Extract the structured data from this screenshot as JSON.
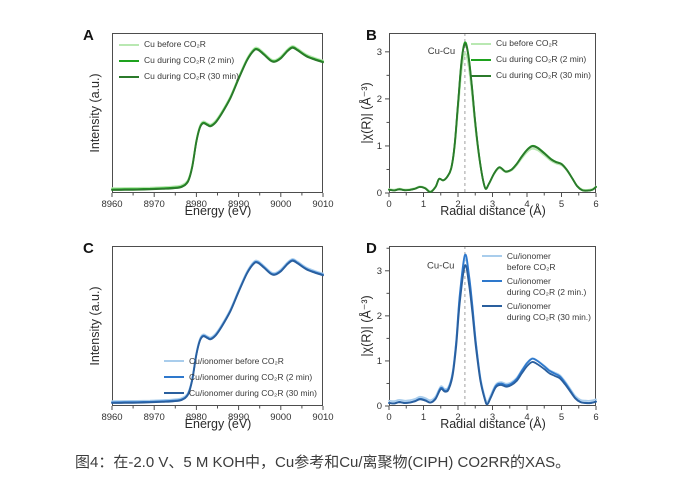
{
  "caption": "图4：在-2.0 V、5 M KOH中，Cu参考和Cu/离聚物(CIPH) CO2RR的XAS。",
  "colors": {
    "green_light": "#b9e8b2",
    "green": "#1ea21e",
    "green_dark": "#2b7a2b",
    "blue_light": "#a9cdec",
    "blue": "#2e78cc",
    "blue_dark": "#2a5f9e",
    "axis": "#4d4d4d",
    "tick_text": "#333333",
    "dashed_line": "#a0a0a0",
    "annotation_text": "#3a3a3a"
  },
  "chart_data": [
    {
      "id": "A",
      "type": "line",
      "label": "A",
      "xlabel": "Energy (eV)",
      "ylabel": "Intensity (a.u.)",
      "xlim": [
        8960,
        9010
      ],
      "ylim": [
        0,
        1.06
      ],
      "xticks": [
        8960,
        8970,
        8980,
        8990,
        9000,
        9010
      ],
      "x_minor": 5,
      "yticks": [],
      "y_minor": null,
      "vline": null,
      "annotation": null,
      "legend": {
        "position": "top-left",
        "items": [
          {
            "lines": [
              "Cu before CO₂R"
            ],
            "color_key": "green_light"
          },
          {
            "lines": [
              "Cu during CO₂R (2 min)"
            ],
            "color_key": "green"
          },
          {
            "lines": [
              "Cu during CO₂R (30 min)"
            ],
            "color_key": "green_dark"
          }
        ]
      },
      "base_points": [
        [
          8960,
          0.02
        ],
        [
          8963,
          0.021
        ],
        [
          8966,
          0.022
        ],
        [
          8969,
          0.024
        ],
        [
          8972,
          0.027
        ],
        [
          8974.5,
          0.031
        ],
        [
          8976.5,
          0.04
        ],
        [
          8978,
          0.075
        ],
        [
          8979,
          0.17
        ],
        [
          8980,
          0.34
        ],
        [
          8980.8,
          0.43
        ],
        [
          8981.6,
          0.462
        ],
        [
          8982.6,
          0.45
        ],
        [
          8983.4,
          0.442
        ],
        [
          8984.6,
          0.468
        ],
        [
          8986,
          0.525
        ],
        [
          8988,
          0.625
        ],
        [
          8990,
          0.755
        ],
        [
          8992,
          0.878
        ],
        [
          8993.6,
          0.943
        ],
        [
          8994.6,
          0.948
        ],
        [
          8996,
          0.916
        ],
        [
          8997.6,
          0.876
        ],
        [
          8998.6,
          0.869
        ],
        [
          9000,
          0.892
        ],
        [
          9001.6,
          0.94
        ],
        [
          9002.8,
          0.962
        ],
        [
          9004,
          0.944
        ],
        [
          9006,
          0.906
        ],
        [
          9008,
          0.884
        ],
        [
          9010,
          0.866
        ]
      ],
      "series": [
        {
          "name": "Cu before CO₂R",
          "color_key": "green_light",
          "scale": 1,
          "dy": 0.012
        },
        {
          "name": "Cu during CO₂R (2 min)",
          "color_key": "green",
          "scale": 1,
          "dy": 0.004
        },
        {
          "name": "Cu during CO₂R (30 min)",
          "color_key": "green_dark",
          "scale": 1,
          "dy": 0
        }
      ]
    },
    {
      "id": "B",
      "type": "line",
      "label": "B",
      "xlabel": "Radial distance (Å)",
      "ylabel": "|χ(R)| (Å⁻³)",
      "xlim": [
        0,
        6
      ],
      "ylim": [
        0,
        3.4
      ],
      "xticks": [
        0,
        1,
        2,
        3,
        4,
        5,
        6
      ],
      "x_minor": 0.5,
      "yticks": [
        0,
        1,
        2,
        3
      ],
      "y_minor": 0.5,
      "vline": 2.2,
      "annotation": {
        "text": "Cu-Cu",
        "x": 1.52,
        "y": 2.95
      },
      "legend": {
        "position": "top-right",
        "items": [
          {
            "lines": [
              "Cu before CO₂R"
            ],
            "color_key": "green_light"
          },
          {
            "lines": [
              "Cu during CO₂R (2 min)"
            ],
            "color_key": "green"
          },
          {
            "lines": [
              "Cu during CO₂R (30 min)"
            ],
            "color_key": "green_dark"
          }
        ]
      },
      "base_points": [
        [
          0,
          0.07
        ],
        [
          0.15,
          0.055
        ],
        [
          0.3,
          0.08
        ],
        [
          0.45,
          0.06
        ],
        [
          0.6,
          0.065
        ],
        [
          0.75,
          0.09
        ],
        [
          0.9,
          0.13
        ],
        [
          1.05,
          0.1
        ],
        [
          1.2,
          0.02
        ],
        [
          1.35,
          0.13
        ],
        [
          1.45,
          0.3
        ],
        [
          1.57,
          0.27
        ],
        [
          1.68,
          0.34
        ],
        [
          1.8,
          0.52
        ],
        [
          1.9,
          1.0
        ],
        [
          2.0,
          1.9
        ],
        [
          2.1,
          2.8
        ],
        [
          2.2,
          3.2
        ],
        [
          2.3,
          2.95
        ],
        [
          2.4,
          2.3
        ],
        [
          2.5,
          1.5
        ],
        [
          2.62,
          0.75
        ],
        [
          2.72,
          0.3
        ],
        [
          2.8,
          0.09
        ],
        [
          2.9,
          0.2
        ],
        [
          3.05,
          0.42
        ],
        [
          3.2,
          0.55
        ],
        [
          3.38,
          0.46
        ],
        [
          3.55,
          0.5
        ],
        [
          3.7,
          0.62
        ],
        [
          3.85,
          0.78
        ],
        [
          4.0,
          0.92
        ],
        [
          4.15,
          1.0
        ],
        [
          4.3,
          0.97
        ],
        [
          4.5,
          0.85
        ],
        [
          4.7,
          0.72
        ],
        [
          4.85,
          0.66
        ],
        [
          5.0,
          0.62
        ],
        [
          5.15,
          0.5
        ],
        [
          5.3,
          0.33
        ],
        [
          5.45,
          0.15
        ],
        [
          5.6,
          0.06
        ],
        [
          5.75,
          0.05
        ],
        [
          5.9,
          0.07
        ],
        [
          6.0,
          0.13
        ]
      ],
      "series": [
        {
          "name": "Cu before CO₂R",
          "color_key": "green_light",
          "scale": 0.92,
          "dy": 0.02
        },
        {
          "name": "Cu during CO₂R (2 min)",
          "color_key": "green",
          "scale": 1,
          "dy": 0
        },
        {
          "name": "Cu during CO₂R (30 min)",
          "color_key": "green_dark",
          "scale": 0.99,
          "dy": 0
        }
      ]
    },
    {
      "id": "C",
      "type": "line",
      "label": "C",
      "xlabel": "Energy (eV)",
      "ylabel": "Intensity (a.u.)",
      "xlim": [
        8960,
        9010
      ],
      "ylim": [
        0,
        1.06
      ],
      "xticks": [
        8960,
        8970,
        8980,
        8990,
        9000,
        9010
      ],
      "x_minor": 5,
      "yticks": [],
      "y_minor": null,
      "vline": null,
      "annotation": null,
      "legend": {
        "position": "bottom-right",
        "items": [
          {
            "lines": [
              "Cu/ionomer before CO₂R"
            ],
            "color_key": "blue_light"
          },
          {
            "lines": [
              "Cu/ionomer during CO₂R (2 min)"
            ],
            "color_key": "blue"
          },
          {
            "lines": [
              "Cu/ionomer during CO₂R (30 min)"
            ],
            "color_key": "blue_dark"
          }
        ]
      },
      "base_points": [
        [
          8960,
          0.02
        ],
        [
          8963,
          0.021
        ],
        [
          8966,
          0.022
        ],
        [
          8969,
          0.024
        ],
        [
          8972,
          0.027
        ],
        [
          8974.5,
          0.031
        ],
        [
          8976.5,
          0.04
        ],
        [
          8978,
          0.075
        ],
        [
          8979,
          0.17
        ],
        [
          8980,
          0.34
        ],
        [
          8980.8,
          0.43
        ],
        [
          8981.6,
          0.462
        ],
        [
          8982.6,
          0.45
        ],
        [
          8983.4,
          0.442
        ],
        [
          8984.6,
          0.468
        ],
        [
          8986,
          0.525
        ],
        [
          8988,
          0.625
        ],
        [
          8990,
          0.755
        ],
        [
          8992,
          0.878
        ],
        [
          8993.6,
          0.943
        ],
        [
          8994.6,
          0.948
        ],
        [
          8996,
          0.916
        ],
        [
          8997.6,
          0.876
        ],
        [
          8998.6,
          0.869
        ],
        [
          9000,
          0.892
        ],
        [
          9001.6,
          0.94
        ],
        [
          9002.8,
          0.962
        ],
        [
          9004,
          0.944
        ],
        [
          9006,
          0.906
        ],
        [
          9008,
          0.884
        ],
        [
          9010,
          0.866
        ]
      ],
      "series": [
        {
          "name": "Cu/ionomer before CO₂R",
          "color_key": "blue_light",
          "scale": 1,
          "dy": 0.012
        },
        {
          "name": "Cu/ionomer during CO₂R (2 min)",
          "color_key": "blue",
          "scale": 1,
          "dy": 0.004
        },
        {
          "name": "Cu/ionomer during CO₂R (30 min)",
          "color_key": "blue_dark",
          "scale": 1,
          "dy": 0
        }
      ]
    },
    {
      "id": "D",
      "type": "line",
      "label": "D",
      "xlabel": "Radial distance (Å)",
      "ylabel": "|χ(R)| (Å⁻³)",
      "xlim": [
        0,
        6
      ],
      "ylim": [
        0,
        3.55
      ],
      "xticks": [
        0,
        1,
        2,
        3,
        4,
        5,
        6
      ],
      "x_minor": 0.5,
      "yticks": [
        0,
        1,
        2,
        3
      ],
      "y_minor": 0.5,
      "vline": 2.2,
      "annotation": {
        "text": "Cu-Cu",
        "x": 1.5,
        "y": 3.05
      },
      "legend": {
        "position": "top-right",
        "dense": true,
        "items": [
          {
            "lines": [
              "Cu/ionomer",
              "before CO₂R"
            ],
            "color_key": "blue_light"
          },
          {
            "lines": [
              "Cu/ionomer",
              "during CO₂R (2 min.)"
            ],
            "color_key": "blue"
          },
          {
            "lines": [
              "Cu/ionomer",
              "during CO₂R (30 min.)"
            ],
            "color_key": "blue_dark"
          }
        ]
      },
      "base_points": [
        [
          0,
          0.07
        ],
        [
          0.15,
          0.06
        ],
        [
          0.3,
          0.09
        ],
        [
          0.45,
          0.07
        ],
        [
          0.6,
          0.08
        ],
        [
          0.75,
          0.11
        ],
        [
          0.9,
          0.16
        ],
        [
          1.05,
          0.13
        ],
        [
          1.2,
          0.08
        ],
        [
          1.35,
          0.17
        ],
        [
          1.5,
          0.4
        ],
        [
          1.62,
          0.34
        ],
        [
          1.73,
          0.4
        ],
        [
          1.85,
          0.75
        ],
        [
          1.95,
          1.45
        ],
        [
          2.05,
          2.45
        ],
        [
          2.2,
          3.35
        ],
        [
          2.32,
          2.9
        ],
        [
          2.42,
          2.2
        ],
        [
          2.52,
          1.4
        ],
        [
          2.65,
          0.6
        ],
        [
          2.78,
          0.15
        ],
        [
          2.85,
          0.04
        ],
        [
          2.95,
          0.2
        ],
        [
          3.1,
          0.45
        ],
        [
          3.25,
          0.5
        ],
        [
          3.4,
          0.46
        ],
        [
          3.55,
          0.5
        ],
        [
          3.7,
          0.6
        ],
        [
          3.85,
          0.78
        ],
        [
          4.0,
          0.95
        ],
        [
          4.15,
          1.05
        ],
        [
          4.3,
          1.0
        ],
        [
          4.5,
          0.88
        ],
        [
          4.65,
          0.78
        ],
        [
          4.8,
          0.72
        ],
        [
          4.95,
          0.66
        ],
        [
          5.1,
          0.52
        ],
        [
          5.25,
          0.35
        ],
        [
          5.4,
          0.18
        ],
        [
          5.55,
          0.09
        ],
        [
          5.7,
          0.07
        ],
        [
          5.85,
          0.07
        ],
        [
          6.0,
          0.1
        ]
      ],
      "series": [
        {
          "name": "Cu/ionomer before CO₂R",
          "color_key": "blue_light",
          "scale": 0.96,
          "dy": 0.05
        },
        {
          "name": "Cu/ionomer during CO₂R (2 min.)",
          "color_key": "blue",
          "scale": 1,
          "dy": 0
        },
        {
          "name": "Cu/ionomer during CO₂R (30 min.)",
          "color_key": "blue_dark",
          "scale": 0.93,
          "dy": 0
        }
      ]
    }
  ]
}
